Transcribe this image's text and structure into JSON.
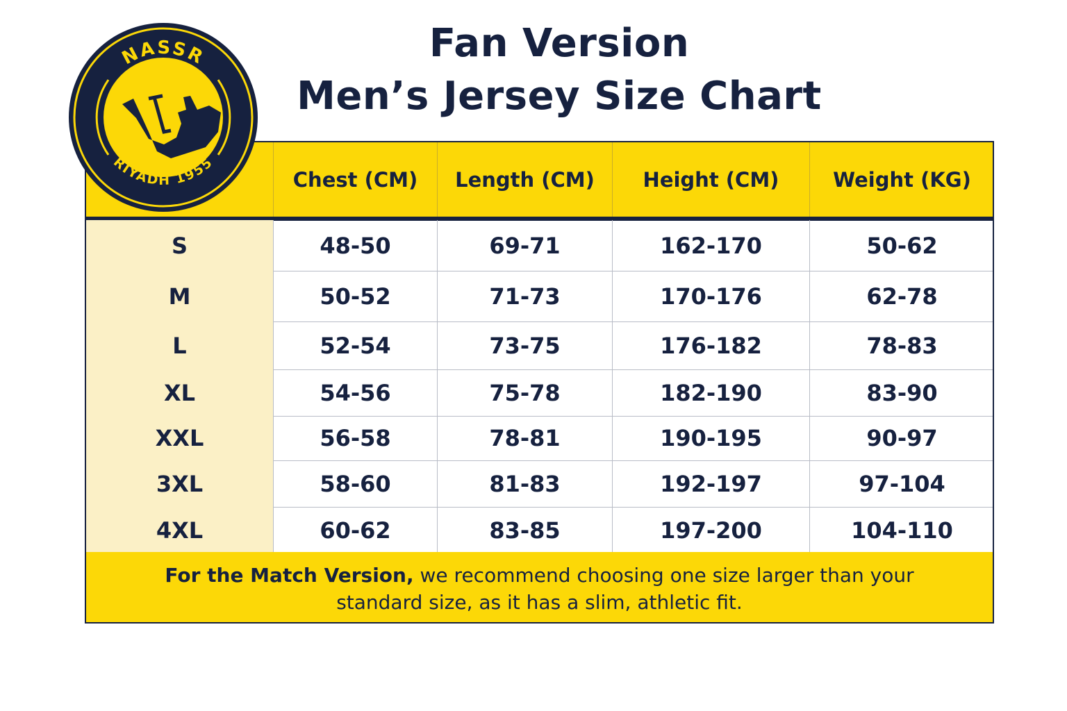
{
  "title": {
    "line1": "Fan Version",
    "line2": "Men’s Jersey Size Chart"
  },
  "logo": {
    "top_text": "NASSR",
    "bottom_text": "RIYADH 1955",
    "colors": {
      "navy": "#16213f",
      "yellow": "#fcd807"
    }
  },
  "colors": {
    "header_bg": "#fcd807",
    "size_col_bg": "#fbf0c6",
    "text": "#16213f",
    "border": "#16213f"
  },
  "chart_data": {
    "type": "table",
    "columns": [
      "",
      "Chest (CM)",
      "Length (CM)",
      "Height (CM)",
      "Weight (KG)"
    ],
    "rows": [
      [
        "S",
        "48-50",
        "69-71",
        "162-170",
        "50-62"
      ],
      [
        "M",
        "50-52",
        "71-73",
        "170-176",
        "62-78"
      ],
      [
        "L",
        "52-54",
        "73-75",
        "176-182",
        "78-83"
      ],
      [
        "XL",
        "54-56",
        "75-78",
        "182-190",
        "83-90"
      ],
      [
        "XXL",
        "56-58",
        "78-81",
        "190-195",
        "90-97"
      ],
      [
        "3XL",
        "58-60",
        "81-83",
        "192-197",
        "97-104"
      ],
      [
        "4XL",
        "60-62",
        "83-85",
        "197-200",
        "104-110"
      ]
    ]
  },
  "footer": {
    "bold": "For the Match Version,",
    "line1_rest": " we recommend choosing one size larger than your",
    "line2": "standard size, as it has a slim, athletic fit."
  }
}
